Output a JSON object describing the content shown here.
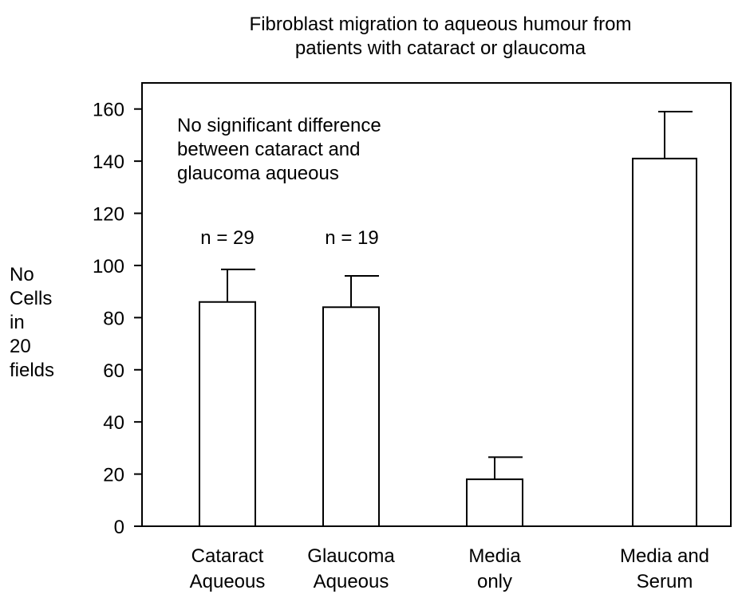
{
  "chart_data": {
    "type": "bar",
    "title": "Fibroblast migration to aqueous humour from\npatients with cataract or glaucoma",
    "y_label": "No\nCells\nin\n20\nfields",
    "categories": [
      "Cataract\nAqueous",
      "Glaucoma\nAqueous",
      "Media\nonly",
      "Media and\nSerum"
    ],
    "values": [
      86,
      84,
      18,
      141
    ],
    "errors": [
      12.5,
      12,
      8.5,
      18
    ],
    "color": "#ffffff",
    "ylim": [
      0,
      170
    ],
    "yticks": [
      0,
      20,
      40,
      60,
      80,
      100,
      120,
      140,
      160
    ],
    "annotations": [
      "No significant difference\nbetween cataract and\nglaucoma aqueous",
      "n = 29",
      "n = 19"
    ]
  }
}
